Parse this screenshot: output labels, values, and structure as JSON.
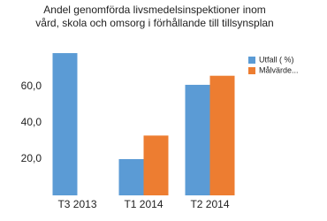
{
  "chart_data": {
    "type": "bar",
    "title": "Andel genomförda livsmedelsinspektioner inom vård, skola och omsorg i förhållande till tillsynsplan",
    "categories": [
      "T3 2013",
      "T1 2014",
      "T2 2014"
    ],
    "series": [
      {
        "name": "Utfall ( %)",
        "color": "#5b9bd5",
        "values": [
          78.5,
          20,
          61
        ]
      },
      {
        "name": "Målvärde...",
        "color": "#ed7d31",
        "values": [
          null,
          33,
          66
        ]
      }
    ],
    "ylim": [
      0,
      80
    ],
    "yticks": [
      {
        "value": 20,
        "label": "20,0"
      },
      {
        "value": 40,
        "label": "40,0"
      },
      {
        "value": 60,
        "label": "60,0"
      }
    ],
    "grid": false
  }
}
